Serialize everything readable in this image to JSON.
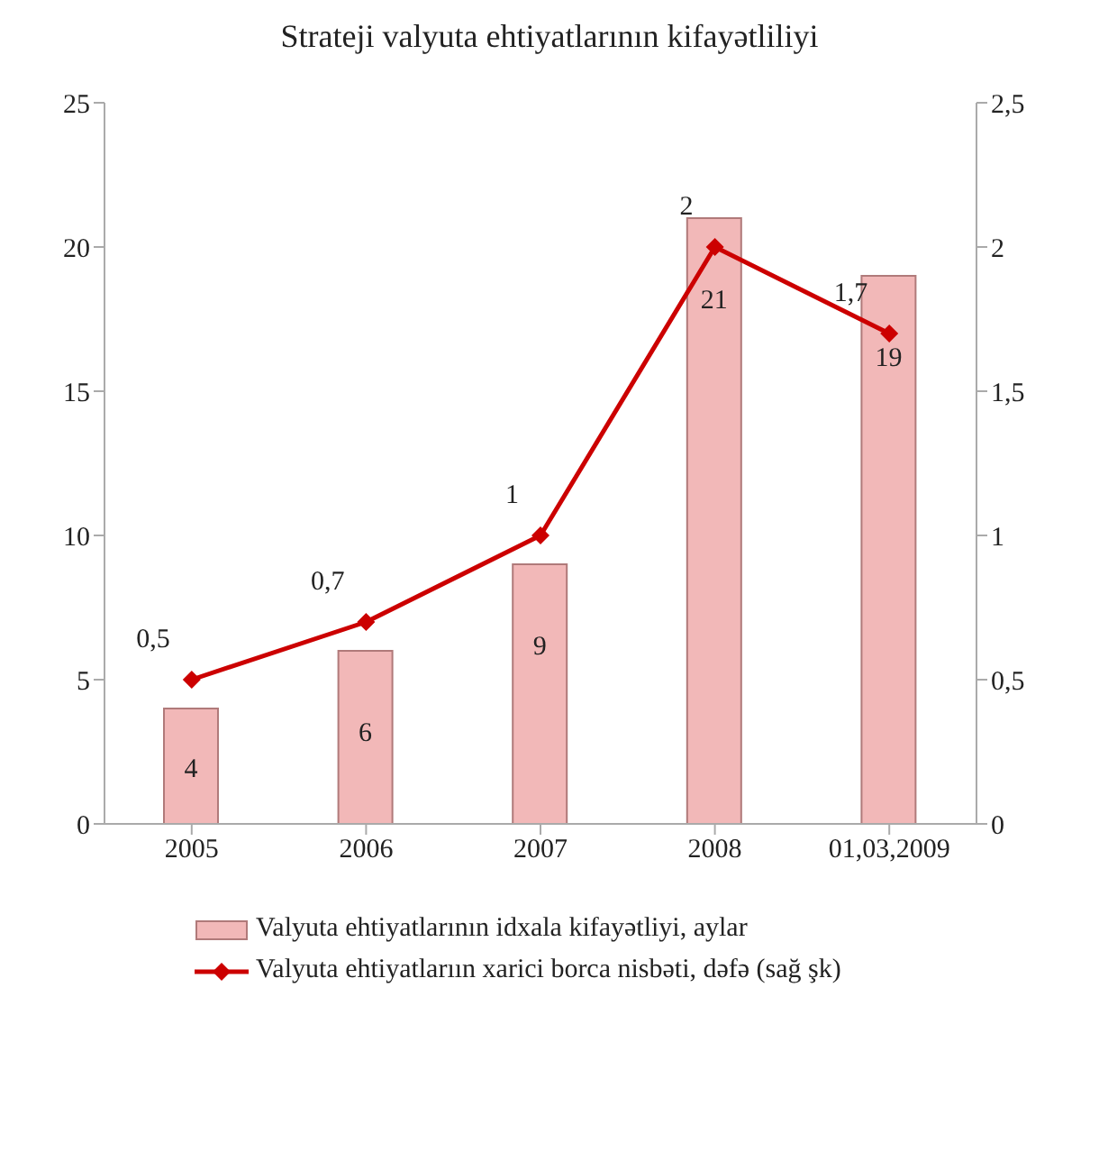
{
  "chart_data": {
    "type": "bar",
    "title": "Strateji valyuta ehtiyatlarının kifayətliliyi",
    "categories": [
      "2005",
      "2006",
      "2007",
      "2008",
      "01,03,2009"
    ],
    "series": [
      {
        "name": "Valyuta ehtiyatlarının idxala kifayətliyi, aylar",
        "color": "#f2b8b8",
        "values": [
          4,
          6,
          9,
          21,
          19
        ],
        "value_labels": [
          "4",
          "6",
          "9",
          "21",
          "19"
        ]
      },
      {
        "name": "Valyuta ehtiyatlarıın xarici borca nisbəti, dəfə (sağ şk)",
        "type": "line",
        "axis": "y2",
        "color": "#cc0000",
        "marker": "diamond",
        "values": [
          0.5,
          0.7,
          1,
          2,
          1.7
        ],
        "value_labels": [
          "0,5",
          "0,7",
          "1",
          "2",
          "1,7"
        ]
      }
    ],
    "ylim": [
      0,
      25
    ],
    "yticks": [
      0,
      5,
      10,
      15,
      20,
      25
    ],
    "y2lim": [
      0,
      2.5
    ],
    "y2ticks": [
      0,
      {
        "value": 0.5,
        "label": "0,5"
      },
      1,
      {
        "value": 1.5,
        "label": "1,5"
      },
      2,
      {
        "value": 2.5,
        "label": "2,5"
      }
    ],
    "grid": false,
    "legend": "bottom"
  }
}
